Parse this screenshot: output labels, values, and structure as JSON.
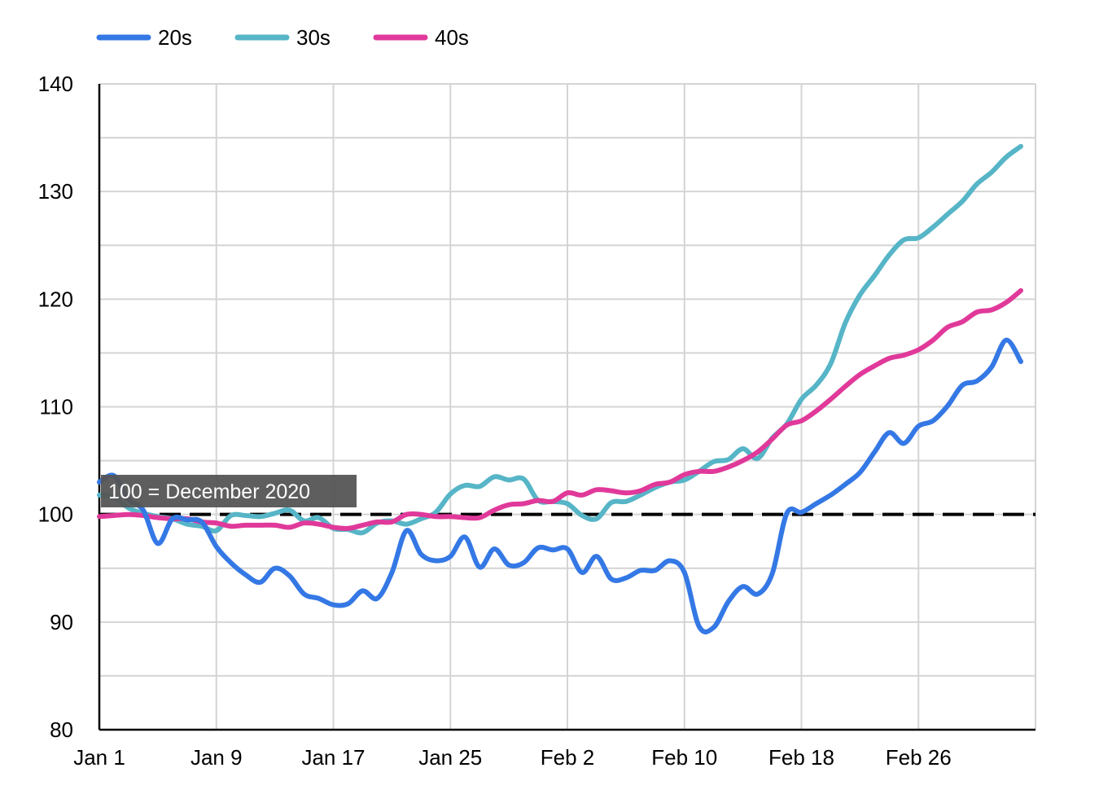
{
  "chart_data": {
    "type": "line",
    "title": "",
    "xlabel": "",
    "ylabel": "",
    "x_range": [
      "2021-01-01",
      "2021-03-06"
    ],
    "ylim": [
      80,
      140
    ],
    "y_ticks": [
      80,
      90,
      100,
      110,
      120,
      130,
      140
    ],
    "y_tick_labels": [
      "80",
      "90",
      "100",
      "110",
      "120",
      "130",
      "140"
    ],
    "x_ticks": [
      "2021-01-01",
      "2021-01-09",
      "2021-01-17",
      "2021-01-25",
      "2021-02-02",
      "2021-02-10",
      "2021-02-18",
      "2021-02-26"
    ],
    "x_tick_labels": [
      "Jan 1",
      "Jan 9",
      "Jan 17",
      "Jan 25",
      "Feb 2",
      "Feb 10",
      "Feb 18",
      "Feb 26"
    ],
    "grid": true,
    "legend_position": "top-left",
    "reference_line": {
      "y": 100,
      "label": "100 = December 2020",
      "style": "dashed",
      "color": "#000000"
    },
    "series": [
      {
        "name": "20s",
        "color": "#3478e5",
        "points": [
          [
            "2021-01-01",
            103.0
          ],
          [
            "2021-01-02",
            103.6
          ],
          [
            "2021-01-03",
            101.4
          ],
          [
            "2021-01-04",
            100.4
          ],
          [
            "2021-01-05",
            97.3
          ],
          [
            "2021-01-06",
            99.6
          ],
          [
            "2021-01-07",
            99.5
          ],
          [
            "2021-01-08",
            99.3
          ],
          [
            "2021-01-09",
            97.0
          ],
          [
            "2021-01-10",
            95.5
          ],
          [
            "2021-01-11",
            94.4
          ],
          [
            "2021-01-12",
            93.7
          ],
          [
            "2021-01-13",
            95.0
          ],
          [
            "2021-01-14",
            94.3
          ],
          [
            "2021-01-15",
            92.6
          ],
          [
            "2021-01-16",
            92.2
          ],
          [
            "2021-01-17",
            91.6
          ],
          [
            "2021-01-18",
            91.7
          ],
          [
            "2021-01-19",
            92.9
          ],
          [
            "2021-01-20",
            92.2
          ],
          [
            "2021-01-21",
            94.6
          ],
          [
            "2021-01-22",
            98.5
          ],
          [
            "2021-01-23",
            96.3
          ],
          [
            "2021-01-24",
            95.7
          ],
          [
            "2021-01-25",
            96.1
          ],
          [
            "2021-01-26",
            97.9
          ],
          [
            "2021-01-27",
            95.1
          ],
          [
            "2021-01-28",
            96.8
          ],
          [
            "2021-01-29",
            95.3
          ],
          [
            "2021-01-30",
            95.5
          ],
          [
            "2021-01-31",
            96.9
          ],
          [
            "2021-02-01",
            96.7
          ],
          [
            "2021-02-02",
            96.8
          ],
          [
            "2021-02-03",
            94.6
          ],
          [
            "2021-02-04",
            96.1
          ],
          [
            "2021-02-05",
            94.0
          ],
          [
            "2021-02-06",
            94.1
          ],
          [
            "2021-02-07",
            94.8
          ],
          [
            "2021-02-08",
            94.8
          ],
          [
            "2021-02-09",
            95.7
          ],
          [
            "2021-02-10",
            94.6
          ],
          [
            "2021-02-11",
            89.6
          ],
          [
            "2021-02-12",
            89.5
          ],
          [
            "2021-02-13",
            91.9
          ],
          [
            "2021-02-14",
            93.3
          ],
          [
            "2021-02-15",
            92.6
          ],
          [
            "2021-02-16",
            94.5
          ],
          [
            "2021-02-17",
            100.1
          ],
          [
            "2021-02-18",
            100.2
          ],
          [
            "2021-02-19",
            101.0
          ],
          [
            "2021-02-20",
            101.8
          ],
          [
            "2021-02-21",
            102.8
          ],
          [
            "2021-02-22",
            103.9
          ],
          [
            "2021-02-23",
            105.8
          ],
          [
            "2021-02-24",
            107.6
          ],
          [
            "2021-02-25",
            106.6
          ],
          [
            "2021-02-26",
            108.2
          ],
          [
            "2021-02-27",
            108.7
          ],
          [
            "2021-02-28",
            110.1
          ],
          [
            "2021-03-01",
            112.0
          ],
          [
            "2021-03-02",
            112.4
          ],
          [
            "2021-03-03",
            113.7
          ],
          [
            "2021-03-04",
            116.2
          ],
          [
            "2021-03-05",
            114.2
          ]
        ]
      },
      {
        "name": "30s",
        "color": "#56b5c7",
        "points": [
          [
            "2021-01-01",
            101.8
          ],
          [
            "2021-01-02",
            101.6
          ],
          [
            "2021-01-03",
            100.6
          ],
          [
            "2021-01-04",
            100.1
          ],
          [
            "2021-01-05",
            99.8
          ],
          [
            "2021-01-06",
            99.6
          ],
          [
            "2021-01-07",
            99.1
          ],
          [
            "2021-01-08",
            98.9
          ],
          [
            "2021-01-09",
            98.5
          ],
          [
            "2021-01-10",
            99.9
          ],
          [
            "2021-01-11",
            99.9
          ],
          [
            "2021-01-12",
            99.8
          ],
          [
            "2021-01-13",
            100.1
          ],
          [
            "2021-01-14",
            100.4
          ],
          [
            "2021-01-15",
            99.4
          ],
          [
            "2021-01-16",
            99.7
          ],
          [
            "2021-01-17",
            98.7
          ],
          [
            "2021-01-18",
            98.6
          ],
          [
            "2021-01-19",
            98.3
          ],
          [
            "2021-01-20",
            99.2
          ],
          [
            "2021-01-21",
            99.4
          ],
          [
            "2021-01-22",
            99.1
          ],
          [
            "2021-01-23",
            99.6
          ],
          [
            "2021-01-24",
            100.2
          ],
          [
            "2021-01-25",
            101.9
          ],
          [
            "2021-01-26",
            102.7
          ],
          [
            "2021-01-27",
            102.6
          ],
          [
            "2021-01-28",
            103.5
          ],
          [
            "2021-01-29",
            103.2
          ],
          [
            "2021-01-30",
            103.3
          ],
          [
            "2021-01-31",
            101.3
          ],
          [
            "2021-02-01",
            101.2
          ],
          [
            "2021-02-02",
            101.0
          ],
          [
            "2021-02-03",
            99.9
          ],
          [
            "2021-02-04",
            99.6
          ],
          [
            "2021-02-05",
            101.1
          ],
          [
            "2021-02-06",
            101.2
          ],
          [
            "2021-02-07",
            101.8
          ],
          [
            "2021-02-08",
            102.5
          ],
          [
            "2021-02-09",
            103.0
          ],
          [
            "2021-02-10",
            103.2
          ],
          [
            "2021-02-11",
            104.0
          ],
          [
            "2021-02-12",
            104.9
          ],
          [
            "2021-02-13",
            105.1
          ],
          [
            "2021-02-14",
            106.1
          ],
          [
            "2021-02-15",
            105.2
          ],
          [
            "2021-02-16",
            107.1
          ],
          [
            "2021-02-17",
            108.4
          ],
          [
            "2021-02-18",
            110.7
          ],
          [
            "2021-02-19",
            112.0
          ],
          [
            "2021-02-20",
            114.0
          ],
          [
            "2021-02-21",
            117.8
          ],
          [
            "2021-02-22",
            120.4
          ],
          [
            "2021-02-23",
            122.2
          ],
          [
            "2021-02-24",
            124.1
          ],
          [
            "2021-02-25",
            125.5
          ],
          [
            "2021-02-26",
            125.7
          ],
          [
            "2021-02-27",
            126.7
          ],
          [
            "2021-02-28",
            127.9
          ],
          [
            "2021-03-01",
            129.1
          ],
          [
            "2021-03-02",
            130.7
          ],
          [
            "2021-03-03",
            131.8
          ],
          [
            "2021-03-04",
            133.2
          ],
          [
            "2021-03-05",
            134.2
          ]
        ]
      },
      {
        "name": "40s",
        "color": "#e0399a",
        "points": [
          [
            "2021-01-01",
            99.8
          ],
          [
            "2021-01-02",
            99.9
          ],
          [
            "2021-01-03",
            100.0
          ],
          [
            "2021-01-04",
            99.9
          ],
          [
            "2021-01-05",
            99.7
          ],
          [
            "2021-01-06",
            99.6
          ],
          [
            "2021-01-07",
            99.6
          ],
          [
            "2021-01-08",
            99.3
          ],
          [
            "2021-01-09",
            99.2
          ],
          [
            "2021-01-10",
            98.9
          ],
          [
            "2021-01-11",
            99.0
          ],
          [
            "2021-01-12",
            99.0
          ],
          [
            "2021-01-13",
            99.0
          ],
          [
            "2021-01-14",
            98.8
          ],
          [
            "2021-01-15",
            99.2
          ],
          [
            "2021-01-16",
            99.1
          ],
          [
            "2021-01-17",
            98.8
          ],
          [
            "2021-01-18",
            98.7
          ],
          [
            "2021-01-19",
            99.0
          ],
          [
            "2021-01-20",
            99.3
          ],
          [
            "2021-01-21",
            99.3
          ],
          [
            "2021-01-22",
            100.0
          ],
          [
            "2021-01-23",
            100.0
          ],
          [
            "2021-01-24",
            99.8
          ],
          [
            "2021-01-25",
            99.8
          ],
          [
            "2021-01-26",
            99.7
          ],
          [
            "2021-01-27",
            99.7
          ],
          [
            "2021-01-28",
            100.4
          ],
          [
            "2021-01-29",
            100.9
          ],
          [
            "2021-01-30",
            101.0
          ],
          [
            "2021-01-31",
            101.3
          ],
          [
            "2021-02-01",
            101.2
          ],
          [
            "2021-02-02",
            102.0
          ],
          [
            "2021-02-03",
            101.8
          ],
          [
            "2021-02-04",
            102.3
          ],
          [
            "2021-02-05",
            102.2
          ],
          [
            "2021-02-06",
            102.0
          ],
          [
            "2021-02-07",
            102.2
          ],
          [
            "2021-02-08",
            102.8
          ],
          [
            "2021-02-09",
            103.0
          ],
          [
            "2021-02-10",
            103.7
          ],
          [
            "2021-02-11",
            104.0
          ],
          [
            "2021-02-12",
            104.0
          ],
          [
            "2021-02-13",
            104.4
          ],
          [
            "2021-02-14",
            105.0
          ],
          [
            "2021-02-15",
            105.8
          ],
          [
            "2021-02-16",
            107.0
          ],
          [
            "2021-02-17",
            108.3
          ],
          [
            "2021-02-18",
            108.7
          ],
          [
            "2021-02-19",
            109.6
          ],
          [
            "2021-02-20",
            110.7
          ],
          [
            "2021-02-21",
            111.9
          ],
          [
            "2021-02-22",
            113.0
          ],
          [
            "2021-02-23",
            113.8
          ],
          [
            "2021-02-24",
            114.5
          ],
          [
            "2021-02-25",
            114.8
          ],
          [
            "2021-02-26",
            115.3
          ],
          [
            "2021-02-27",
            116.2
          ],
          [
            "2021-02-28",
            117.4
          ],
          [
            "2021-03-01",
            117.9
          ],
          [
            "2021-03-02",
            118.8
          ],
          [
            "2021-03-03",
            119.0
          ],
          [
            "2021-03-04",
            119.7
          ],
          [
            "2021-03-05",
            120.8
          ]
        ]
      }
    ]
  }
}
